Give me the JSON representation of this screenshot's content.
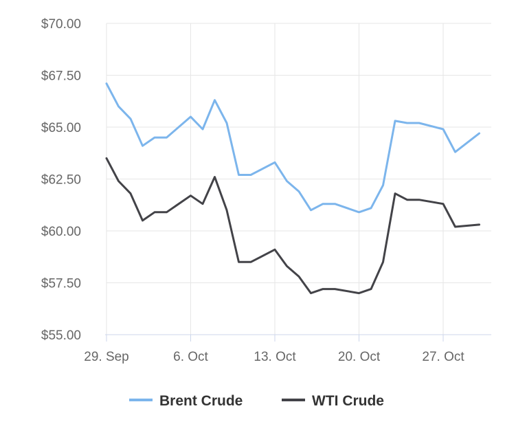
{
  "chart_data": {
    "type": "line",
    "title": "",
    "xlabel": "",
    "ylabel": "",
    "ylim": [
      55,
      70
    ],
    "y_ticks": [
      55,
      57.5,
      60,
      62.5,
      65,
      67.5,
      70
    ],
    "y_tick_labels": [
      "$55.00",
      "$57.50",
      "$60.00",
      "$62.50",
      "$65.00",
      "$67.50",
      "$70.00"
    ],
    "x_ticks": [
      "2025-09-29",
      "2025-10-06",
      "2025-10-13",
      "2025-10-20",
      "2025-10-27"
    ],
    "x_tick_labels": [
      "29. Sep",
      "6. Oct",
      "13. Oct",
      "20. Oct",
      "27. Oct"
    ],
    "xlim": [
      "2025-09-29",
      "2025-10-31"
    ],
    "grid": true,
    "legend_position": "bottom-center",
    "x": [
      "2025-09-29",
      "2025-09-30",
      "2025-10-01",
      "2025-10-02",
      "2025-10-03",
      "2025-10-04",
      "2025-10-06",
      "2025-10-07",
      "2025-10-08",
      "2025-10-09",
      "2025-10-10",
      "2025-10-11",
      "2025-10-13",
      "2025-10-14",
      "2025-10-15",
      "2025-10-16",
      "2025-10-17",
      "2025-10-18",
      "2025-10-20",
      "2025-10-21",
      "2025-10-22",
      "2025-10-23",
      "2025-10-24",
      "2025-10-25",
      "2025-10-27",
      "2025-10-28",
      "2025-10-30"
    ],
    "series": [
      {
        "name": "Brent Crude",
        "color": "#7cb5ec",
        "values": [
          67.1,
          66.0,
          65.4,
          64.1,
          64.5,
          64.5,
          65.5,
          64.9,
          66.3,
          65.2,
          62.7,
          62.7,
          63.3,
          62.4,
          61.9,
          61.0,
          61.3,
          61.3,
          60.9,
          61.1,
          62.2,
          65.3,
          65.2,
          65.2,
          64.9,
          63.8,
          64.7
        ]
      },
      {
        "name": "WTI Crude",
        "color": "#434348",
        "values": [
          63.5,
          62.4,
          61.8,
          60.5,
          60.9,
          60.9,
          61.7,
          61.3,
          62.6,
          61.0,
          58.5,
          58.5,
          59.1,
          58.3,
          57.8,
          57.0,
          57.2,
          57.2,
          57.0,
          57.2,
          58.5,
          61.8,
          61.5,
          61.5,
          61.3,
          60.2,
          60.3
        ]
      }
    ]
  }
}
